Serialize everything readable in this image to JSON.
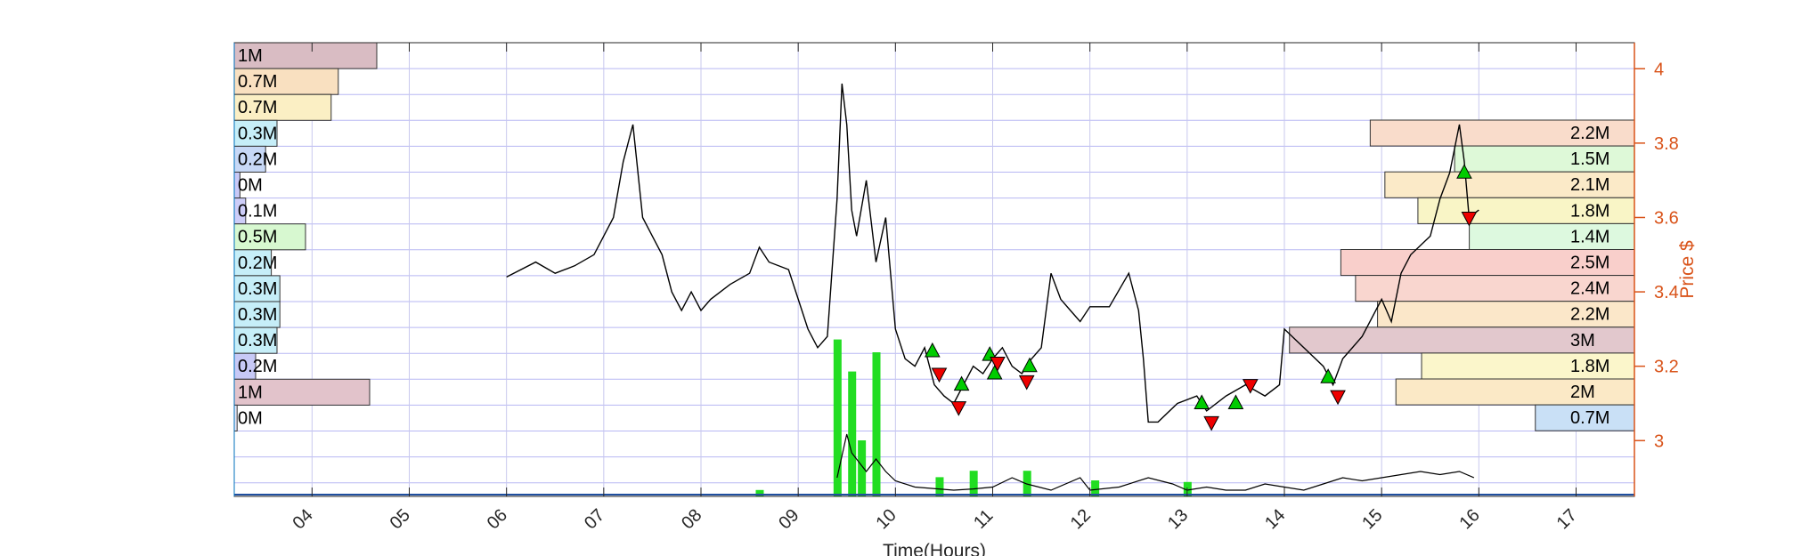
{
  "chart_data": {
    "type": "line",
    "xlabel": "Time(Hours)",
    "ylabel": "Price $",
    "xlim": [
      3.2,
      17.6
    ],
    "ylim": [
      2.85,
      4.07
    ],
    "x_ticks": [
      "04",
      "05",
      "06",
      "07",
      "08",
      "09",
      "10",
      "11",
      "12",
      "13",
      "14",
      "15",
      "16",
      "17"
    ],
    "y_ticks": [
      "3",
      "3.2",
      "3.4",
      "3.6",
      "3.8",
      "4"
    ],
    "grid": true,
    "colors": {
      "price_line": "#000000",
      "right_axis": "#D95319",
      "left_axis": "#0072BD",
      "grid_line": "#9999EE",
      "volume_bar": "#22DD22",
      "buy_marker": "#00CC00",
      "sell_marker": "#EE0000"
    },
    "series": [
      {
        "x": [
          6.0,
          6.3,
          6.5,
          6.7,
          6.9,
          7.1,
          7.2,
          7.3,
          7.4,
          7.5,
          7.6,
          7.7,
          7.8,
          7.9,
          8.0,
          8.1,
          8.3,
          8.5,
          8.6,
          8.7,
          8.9,
          9.0,
          9.1,
          9.2,
          9.3,
          9.4,
          9.45,
          9.5,
          9.55,
          9.6,
          9.7,
          9.8,
          9.9,
          10.0,
          10.1,
          10.2,
          10.3,
          10.4,
          10.5,
          10.6,
          10.7,
          10.8,
          10.9,
          11.0,
          11.1,
          11.2,
          11.3,
          11.4,
          11.5,
          11.6,
          11.7,
          11.8,
          11.9,
          12.0,
          12.2,
          12.4,
          12.5,
          12.55,
          12.6,
          12.7,
          12.9,
          13.1,
          13.2,
          13.4,
          13.6,
          13.8,
          13.95,
          14.0,
          14.2,
          14.4,
          14.5,
          14.6,
          14.8,
          15.0,
          15.1,
          15.2,
          15.3,
          15.5,
          15.6,
          15.7,
          15.8,
          15.85,
          15.9,
          16.0
        ],
        "values": [
          3.44,
          3.48,
          3.45,
          3.47,
          3.5,
          3.6,
          3.75,
          3.85,
          3.6,
          3.55,
          3.5,
          3.4,
          3.35,
          3.4,
          3.35,
          3.38,
          3.42,
          3.45,
          3.52,
          3.48,
          3.46,
          3.38,
          3.3,
          3.25,
          3.28,
          3.65,
          3.96,
          3.85,
          3.62,
          3.55,
          3.7,
          3.48,
          3.6,
          3.3,
          3.22,
          3.2,
          3.25,
          3.15,
          3.12,
          3.1,
          3.15,
          3.2,
          3.18,
          3.22,
          3.25,
          3.2,
          3.18,
          3.22,
          3.25,
          3.45,
          3.38,
          3.35,
          3.32,
          3.36,
          3.36,
          3.45,
          3.35,
          3.22,
          3.05,
          3.05,
          3.1,
          3.12,
          3.08,
          3.12,
          3.15,
          3.12,
          3.15,
          3.3,
          3.25,
          3.2,
          3.15,
          3.22,
          3.28,
          3.38,
          3.32,
          3.45,
          3.5,
          3.55,
          3.65,
          3.72,
          3.85,
          3.75,
          3.6,
          3.62
        ]
      },
      {
        "x": [
          9.4,
          9.5,
          9.55,
          9.65,
          9.7,
          9.8,
          9.9,
          10.0,
          10.2,
          10.6,
          10.8,
          11.0,
          11.2,
          11.35,
          11.6,
          11.9,
          12.0,
          12.3,
          12.6,
          12.85,
          13.0,
          13.2,
          13.4,
          13.6,
          13.8,
          14.0,
          14.2,
          14.4,
          14.6,
          14.8,
          15.0,
          15.2,
          15.4,
          15.6,
          15.8,
          15.95
        ],
        "values": [
          0.3,
          1.0,
          0.7,
          0.5,
          0.4,
          0.6,
          0.4,
          0.25,
          0.15,
          0.1,
          0.12,
          0.15,
          0.3,
          0.2,
          0.1,
          0.3,
          0.1,
          0.15,
          0.3,
          0.2,
          0.1,
          0.15,
          0.1,
          0.1,
          0.2,
          0.15,
          0.1,
          0.2,
          0.3,
          0.25,
          0.3,
          0.35,
          0.4,
          0.35,
          0.4,
          0.3
        ]
      }
    ],
    "volume_bars": [
      {
        "x": 9.4,
        "values": 0.98
      },
      {
        "x": 9.55,
        "values": 0.78
      },
      {
        "x": 9.65,
        "values": 0.35
      },
      {
        "x": 9.8,
        "values": 0.9
      },
      {
        "x": 10.45,
        "values": 0.12
      },
      {
        "x": 10.8,
        "values": 0.16
      },
      {
        "x": 11.35,
        "values": 0.16
      },
      {
        "x": 12.05,
        "values": 0.1
      },
      {
        "x": 13.0,
        "values": 0.09
      },
      {
        "x": 8.6,
        "values": 0.04
      }
    ],
    "buy_signals": [
      {
        "x": 10.38,
        "y": 3.24
      },
      {
        "x": 10.68,
        "y": 3.15
      },
      {
        "x": 10.97,
        "y": 3.23
      },
      {
        "x": 11.02,
        "y": 3.18
      },
      {
        "x": 11.38,
        "y": 3.2
      },
      {
        "x": 13.15,
        "y": 3.1
      },
      {
        "x": 13.5,
        "y": 3.1
      },
      {
        "x": 14.45,
        "y": 3.17
      },
      {
        "x": 15.85,
        "y": 3.72
      }
    ],
    "sell_signals": [
      {
        "x": 10.45,
        "y": 3.18
      },
      {
        "x": 10.65,
        "y": 3.09
      },
      {
        "x": 11.05,
        "y": 3.21
      },
      {
        "x": 11.35,
        "y": 3.16
      },
      {
        "x": 13.25,
        "y": 3.05
      },
      {
        "x": 13.65,
        "y": 3.15
      },
      {
        "x": 14.55,
        "y": 3.12
      },
      {
        "x": 15.9,
        "y": 3.6
      }
    ],
    "volume_profile_left": [
      {
        "label": "1M",
        "values": 1.0
      },
      {
        "label": "0.7M",
        "values": 0.73
      },
      {
        "label": "0.7M",
        "values": 0.68
      },
      {
        "label": "0.3M",
        "values": 0.3
      },
      {
        "label": "0.2M",
        "values": 0.22
      },
      {
        "label": "0M",
        "values": 0.04
      },
      {
        "label": "0.1M",
        "values": 0.08
      },
      {
        "label": "0.5M",
        "values": 0.5
      },
      {
        "label": "0.2M",
        "values": 0.26
      },
      {
        "label": "0.3M",
        "values": 0.32
      },
      {
        "label": "0.3M",
        "values": 0.32
      },
      {
        "label": "0.3M",
        "values": 0.3
      },
      {
        "label": "0.2M",
        "values": 0.15
      },
      {
        "label": "1M",
        "values": 0.95
      },
      {
        "label": "0M",
        "values": 0.02
      }
    ],
    "volume_profile_right": [
      {
        "label": "2.2M",
        "values": 0.72
      },
      {
        "label": "1.5M",
        "values": 0.49
      },
      {
        "label": "2.1M",
        "values": 0.68
      },
      {
        "label": "1.8M",
        "values": 0.59
      },
      {
        "label": "1.4M",
        "values": 0.45
      },
      {
        "label": "2.5M",
        "values": 0.8
      },
      {
        "label": "2.4M",
        "values": 0.76
      },
      {
        "label": "2.2M",
        "values": 0.7
      },
      {
        "label": "3M",
        "values": 0.94
      },
      {
        "label": "1.8M",
        "values": 0.58
      },
      {
        "label": "2M",
        "values": 0.65
      },
      {
        "label": "0.7M",
        "values": 0.27
      }
    ],
    "profile_colors_left": [
      "#D9BCC3",
      "#F9E0C0",
      "#FBEFC4",
      "#C6EEF8",
      "#C7D8F6",
      "#C9C9F7",
      "#CDCDF8",
      "#D7F8D0",
      "#C6EEF8",
      "#C6EEF8",
      "#C6EEF8",
      "#C6EEF8",
      "#C7C9F6",
      "#E2C3CB",
      "#E6E6F6"
    ],
    "profile_colors_right": [
      "#F9DCCB",
      "#DEF9D8",
      "#FBEAC8",
      "#F9F5C6",
      "#DDF9DF",
      "#F9CFCB",
      "#F9D6CF",
      "#FBE7C9",
      "#E2C8CD",
      "#FBF6CB",
      "#FBE9C6",
      "#C9E0F6"
    ]
  }
}
